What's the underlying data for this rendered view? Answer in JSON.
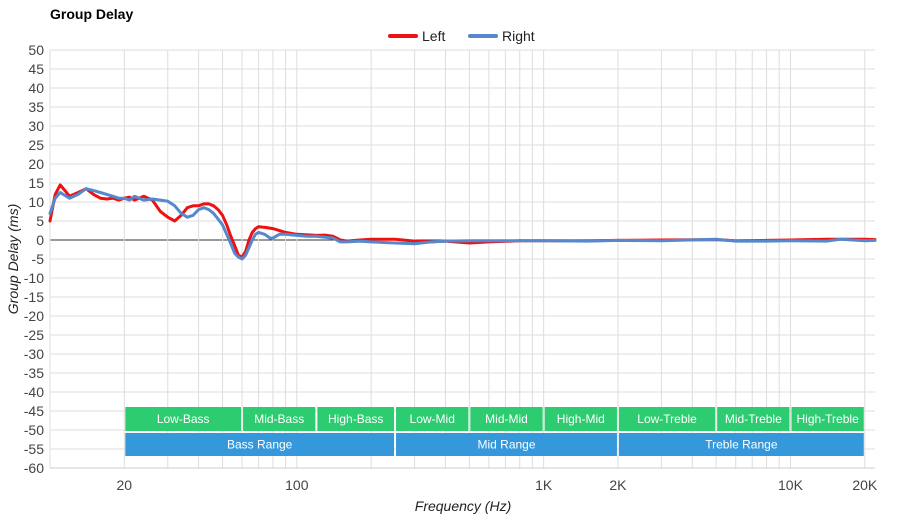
{
  "chart_data": {
    "type": "line",
    "title": "Group Delay",
    "xlabel": "Frequency (Hz)",
    "ylabel": "Group Delay (ms)",
    "x_scale": "log",
    "xlim": [
      10,
      22000
    ],
    "ylim": [
      -60,
      50
    ],
    "y_ticks": [
      50,
      45,
      40,
      35,
      30,
      25,
      20,
      15,
      10,
      5,
      0,
      -5,
      -10,
      -15,
      -20,
      -25,
      -30,
      -35,
      -40,
      -45,
      -50,
      -55,
      -60
    ],
    "x_ticks": [
      {
        "value": 20,
        "label": "20"
      },
      {
        "value": 100,
        "label": "100"
      },
      {
        "value": 1000,
        "label": "1K"
      },
      {
        "value": 2000,
        "label": "2K"
      },
      {
        "value": 10000,
        "label": "10K"
      },
      {
        "value": 20000,
        "label": "20K"
      }
    ],
    "grid": true,
    "legend_position": "top-center",
    "series": [
      {
        "name": "Left",
        "color": "#ee1111",
        "points": [
          [
            10,
            5
          ],
          [
            10.5,
            12
          ],
          [
            11,
            14.5
          ],
          [
            11.5,
            13
          ],
          [
            12,
            11.5
          ],
          [
            13,
            12.5
          ],
          [
            14,
            13.5
          ],
          [
            15,
            12
          ],
          [
            16,
            11
          ],
          [
            17,
            10.8
          ],
          [
            18,
            11
          ],
          [
            19,
            10.5
          ],
          [
            20,
            11
          ],
          [
            21,
            11.3
          ],
          [
            22,
            10.5
          ],
          [
            24,
            11.5
          ],
          [
            26,
            10.5
          ],
          [
            28,
            7.5
          ],
          [
            30,
            6
          ],
          [
            32,
            5
          ],
          [
            34,
            6.5
          ],
          [
            36,
            8.5
          ],
          [
            38,
            9
          ],
          [
            40,
            9
          ],
          [
            42,
            9.5
          ],
          [
            44,
            9.5
          ],
          [
            46,
            9
          ],
          [
            48,
            8
          ],
          [
            50,
            6.5
          ],
          [
            52,
            4
          ],
          [
            54,
            1
          ],
          [
            56,
            -1.5
          ],
          [
            58,
            -4
          ],
          [
            60,
            -4.5
          ],
          [
            62,
            -3
          ],
          [
            64,
            0
          ],
          [
            66,
            2
          ],
          [
            68,
            3
          ],
          [
            70,
            3.5
          ],
          [
            75,
            3.3
          ],
          [
            80,
            3
          ],
          [
            90,
            2
          ],
          [
            100,
            1.5
          ],
          [
            120,
            1.2
          ],
          [
            130,
            1.3
          ],
          [
            140,
            1
          ],
          [
            150,
            0
          ],
          [
            160,
            -0.3
          ],
          [
            180,
            0
          ],
          [
            200,
            0.2
          ],
          [
            250,
            0.2
          ],
          [
            300,
            -0.3
          ],
          [
            350,
            -0.5
          ],
          [
            400,
            -0.3
          ],
          [
            500,
            -0.8
          ],
          [
            600,
            -0.5
          ],
          [
            800,
            -0.2
          ],
          [
            1000,
            -0.2
          ],
          [
            1500,
            -0.2
          ],
          [
            2000,
            -0.1
          ],
          [
            3000,
            0
          ],
          [
            5000,
            0.1
          ],
          [
            6000,
            -0.2
          ],
          [
            8000,
            -0.1
          ],
          [
            10000,
            0
          ],
          [
            14000,
            0.2
          ],
          [
            20000,
            0.2
          ],
          [
            22000,
            0.1
          ]
        ]
      },
      {
        "name": "Right",
        "color": "#5588cc",
        "points": [
          [
            10,
            7
          ],
          [
            10.5,
            11
          ],
          [
            11,
            12.5
          ],
          [
            12,
            11
          ],
          [
            13,
            12
          ],
          [
            14,
            13.5
          ],
          [
            15,
            13
          ],
          [
            16,
            12.5
          ],
          [
            17,
            12
          ],
          [
            18,
            11.5
          ],
          [
            19,
            11
          ],
          [
            20,
            11
          ],
          [
            21,
            10.5
          ],
          [
            22,
            11.5
          ],
          [
            24,
            10.5
          ],
          [
            26,
            10.8
          ],
          [
            28,
            10.5
          ],
          [
            30,
            10.2
          ],
          [
            32,
            9
          ],
          [
            34,
            7
          ],
          [
            36,
            6
          ],
          [
            38,
            6.5
          ],
          [
            40,
            8
          ],
          [
            42,
            8.5
          ],
          [
            44,
            8
          ],
          [
            46,
            7
          ],
          [
            48,
            5.5
          ],
          [
            50,
            4
          ],
          [
            52,
            1.5
          ],
          [
            54,
            -1
          ],
          [
            56,
            -3.5
          ],
          [
            58,
            -4.5
          ],
          [
            60,
            -5
          ],
          [
            62,
            -4
          ],
          [
            64,
            -2
          ],
          [
            66,
            0
          ],
          [
            68,
            1.5
          ],
          [
            70,
            2
          ],
          [
            74,
            1.5
          ],
          [
            78,
            0.5
          ],
          [
            80,
            0.5
          ],
          [
            85,
            1.5
          ],
          [
            90,
            1.5
          ],
          [
            100,
            1.2
          ],
          [
            110,
            1
          ],
          [
            120,
            1
          ],
          [
            140,
            0.5
          ],
          [
            150,
            -0.5
          ],
          [
            160,
            -0.5
          ],
          [
            180,
            -0.3
          ],
          [
            200,
            -0.5
          ],
          [
            250,
            -0.8
          ],
          [
            300,
            -1
          ],
          [
            350,
            -0.5
          ],
          [
            400,
            -0.3
          ],
          [
            500,
            -0.2
          ],
          [
            700,
            -0.2
          ],
          [
            1000,
            -0.2
          ],
          [
            1500,
            -0.3
          ],
          [
            2000,
            -0.1
          ],
          [
            3000,
            -0.2
          ],
          [
            5000,
            0.2
          ],
          [
            6000,
            -0.3
          ],
          [
            8000,
            -0.3
          ],
          [
            10000,
            -0.2
          ],
          [
            14000,
            -0.3
          ],
          [
            16000,
            0.2
          ],
          [
            20000,
            -0.2
          ],
          [
            22000,
            -0.1
          ]
        ]
      }
    ],
    "ranges_top": [
      {
        "label": "Low-Bass",
        "from": 20,
        "to": 60,
        "color": "#2ecc71"
      },
      {
        "label": "Mid-Bass",
        "from": 60,
        "to": 120,
        "color": "#2ecc71"
      },
      {
        "label": "High-Bass",
        "from": 120,
        "to": 250,
        "color": "#2ecc71"
      },
      {
        "label": "Low-Mid",
        "from": 250,
        "to": 500,
        "color": "#2ecc71"
      },
      {
        "label": "Mid-Mid",
        "from": 500,
        "to": 1000,
        "color": "#2ecc71"
      },
      {
        "label": "High-Mid",
        "from": 1000,
        "to": 2000,
        "color": "#2ecc71"
      },
      {
        "label": "Low-Treble",
        "from": 2000,
        "to": 5000,
        "color": "#2ecc71"
      },
      {
        "label": "Mid-Treble",
        "from": 5000,
        "to": 10000,
        "color": "#2ecc71"
      },
      {
        "label": "High-Treble",
        "from": 10000,
        "to": 20000,
        "color": "#2ecc71"
      }
    ],
    "ranges_bottom": [
      {
        "label": "Bass Range",
        "from": 20,
        "to": 250,
        "color": "#3498db"
      },
      {
        "label": "Mid Range",
        "from": 250,
        "to": 2000,
        "color": "#3498db"
      },
      {
        "label": "Treble Range",
        "from": 2000,
        "to": 20000,
        "color": "#3498db"
      }
    ]
  }
}
